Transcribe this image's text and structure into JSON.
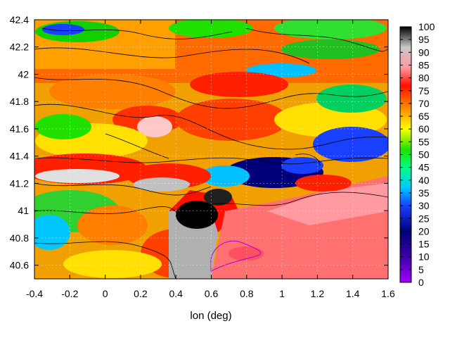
{
  "chart_data": {
    "type": "heatmap",
    "title": "",
    "xlabel": "lon (deg)",
    "ylabel": "",
    "xlim": [
      -0.4,
      1.6
    ],
    "ylim": [
      40.5,
      42.4
    ],
    "x_ticks": [
      "-0.4",
      "-0.2",
      "0",
      "0.2",
      "0.4",
      "0.6",
      "0.8",
      "1",
      "1.2",
      "1.4",
      "1.6"
    ],
    "y_ticks": [
      "40.6",
      "40.8",
      "41",
      "41.2",
      "41.4",
      "41.6",
      "41.8",
      "42",
      "42.2",
      "42.4"
    ],
    "colorbar": {
      "range": [
        0,
        100
      ],
      "ticks": [
        "0",
        "5",
        "10",
        "15",
        "20",
        "25",
        "30",
        "35",
        "40",
        "45",
        "50",
        "55",
        "60",
        "65",
        "70",
        "75",
        "80",
        "85",
        "90",
        "95",
        "100"
      ],
      "palette": [
        "#a000ff",
        "#3a00a8",
        "#00007a",
        "#1a40ff",
        "#00c8ff",
        "#00ff80",
        "#20e000",
        "#ffff00",
        "#ff8c00",
        "#ff1000",
        "#ff9aa0",
        "#c8c8c8",
        "#000000"
      ]
    },
    "grid": true,
    "overlay": "contour lines"
  }
}
